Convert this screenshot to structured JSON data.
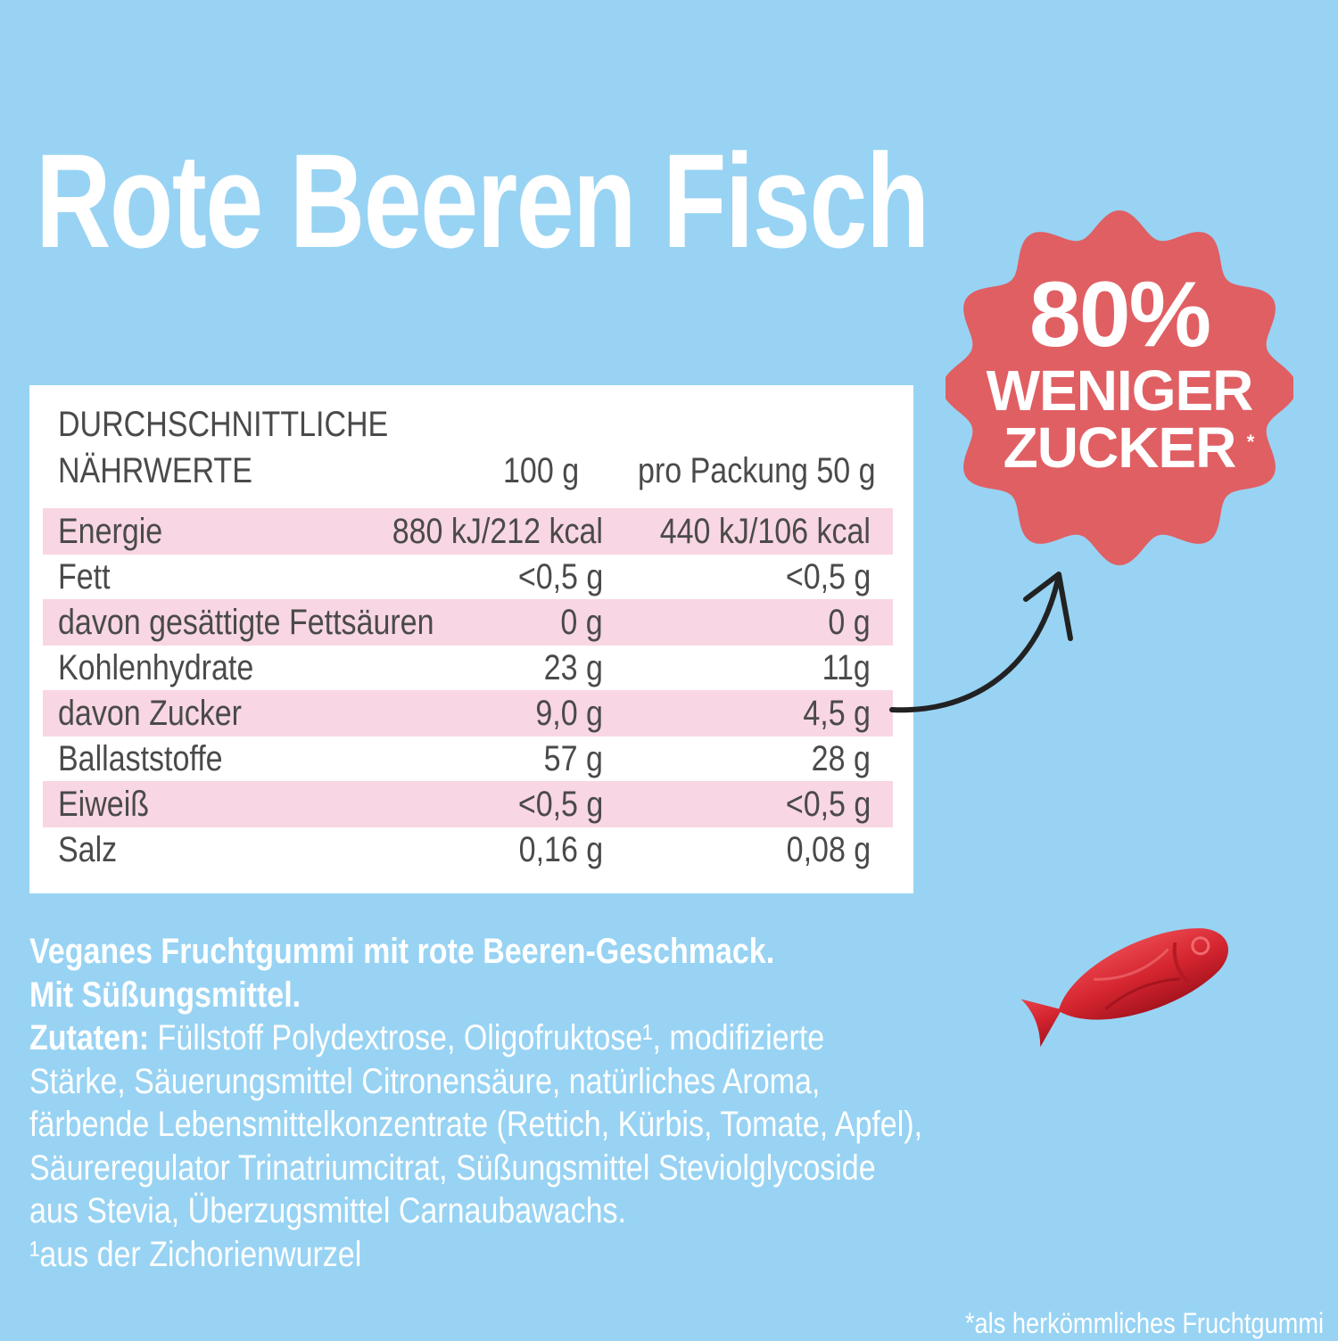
{
  "title": "Rote Beeren Fisch",
  "badge": {
    "line1": "80%",
    "line2": "WENIGER",
    "line3": "ZUCKER",
    "asterisk": "*",
    "color": "#e05f63"
  },
  "nutrition": {
    "heading_line1": "DURCHSCHNITTLICHE",
    "heading_line2": "NÄHRWERTE",
    "col1": "100 g",
    "col2": "pro Packung 50 g",
    "rows": [
      {
        "label": "Energie",
        "per100": "880 kJ/212 kcal",
        "perPack": "440 kJ/106 kcal"
      },
      {
        "label": "Fett",
        "per100": "<0,5 g",
        "perPack": "<0,5 g"
      },
      {
        "label": "davon gesättigte Fettsäuren",
        "per100": "0 g",
        "perPack": "0 g"
      },
      {
        "label": "Kohlenhydrate",
        "per100": "23 g",
        "perPack": "11g"
      },
      {
        "label": "davon Zucker",
        "per100": "9,0 g",
        "perPack": "4,5 g"
      },
      {
        "label": "Ballaststoffe",
        "per100": "57 g",
        "perPack": "28 g"
      },
      {
        "label": "Eiweiß",
        "per100": "<0,5 g",
        "perPack": "<0,5 g"
      },
      {
        "label": "Salz",
        "per100": "0,16 g",
        "perPack": "0,08 g"
      }
    ]
  },
  "description": {
    "line1": "Veganes Fruchtgummi mit rote Beeren-Geschmack.",
    "line2": "Mit Süßungsmittel.",
    "ingredients_label": "Zutaten:",
    "ingredients_text": " Füllstoff Polydextrose, Oligofruktose¹, modifizierte Stärke, Säuerungsmittel Citronensäure, natürliches Aroma, färbende Lebensmittelkonzentrate (Rettich, Kürbis, Tomate, Apfel), Säureregulator Trinatriumcitrat, Süßungsmittel Steviolglycoside aus Stevia, Überzugsmittel Carnaubawachs.",
    "footnote1": "¹aus der Zichorienwurzel"
  },
  "footnote": "*als herkömmliches Fruchtgummi",
  "colors": {
    "background": "#98d3f3",
    "row_highlight": "#f8d6e3",
    "fish": "#d6262f"
  }
}
